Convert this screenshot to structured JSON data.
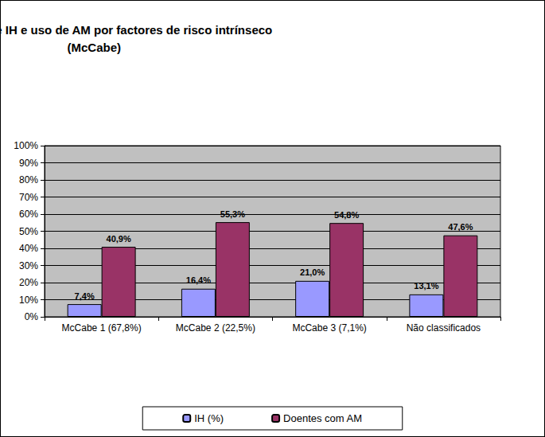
{
  "chart_data": {
    "type": "bar",
    "title": "Distribuição de IH e uso de AM por factores de risco intrínseco\n(McCabe)",
    "categories": [
      "McCabe 1 (67,8%)",
      "McCabe 2 (22,5%)",
      "McCabe 3 (7,1%)",
      "Não classificados"
    ],
    "series": [
      {
        "name": "IH (%)",
        "color": "#9999ff",
        "values": [
          7.4,
          16.4,
          21.0,
          13.1
        ],
        "value_labels": [
          "7,4%",
          "16,4%",
          "21,0%",
          "13,1%"
        ]
      },
      {
        "name": "Doentes com AM",
        "color": "#993366",
        "values": [
          40.9,
          55.3,
          54.8,
          47.6
        ],
        "value_labels": [
          "40,9%",
          "55,3%",
          "54,8%",
          "47,6%"
        ]
      }
    ],
    "ylim": [
      0,
      100
    ],
    "yticks": [
      {
        "value": 0,
        "label": "0%"
      },
      {
        "value": 10,
        "label": "10%"
      },
      {
        "value": 20,
        "label": "20%"
      },
      {
        "value": 30,
        "label": "30%"
      },
      {
        "value": 40,
        "label": "40%"
      },
      {
        "value": 50,
        "label": "50%"
      },
      {
        "value": 60,
        "label": "60%"
      },
      {
        "value": 70,
        "label": "70%"
      },
      {
        "value": 80,
        "label": "80%"
      },
      {
        "value": 90,
        "label": "90%"
      },
      {
        "value": 100,
        "label": "100%"
      }
    ],
    "grid": true,
    "legend": "bottom",
    "data_labels": true
  }
}
